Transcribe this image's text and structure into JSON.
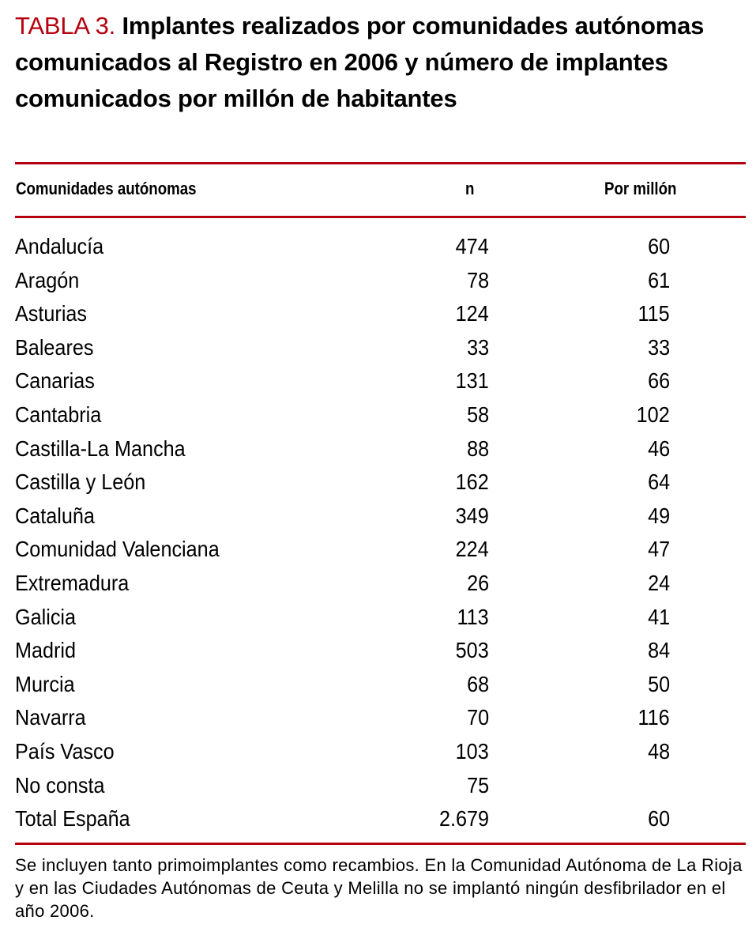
{
  "title": {
    "label": "TABLA 3.",
    "text": "Implantes realizados por comunidades autónomas comunicados al Registro en 2006 y número de implantes comunicados por millón de habitantes"
  },
  "colors": {
    "accent": "#b5000f"
  },
  "headers": [
    "Comunidades autónomas",
    "n",
    "Por millón"
  ],
  "rows": [
    [
      "Andalucía",
      "474",
      "60"
    ],
    [
      "Aragón",
      "78",
      "61"
    ],
    [
      "Asturias",
      "124",
      "115"
    ],
    [
      "Baleares",
      "33",
      "33"
    ],
    [
      "Canarias",
      "131",
      "66"
    ],
    [
      "Cantabria",
      "58",
      "102"
    ],
    [
      "Castilla-La Mancha",
      "88",
      "46"
    ],
    [
      "Castilla y León",
      "162",
      "64"
    ],
    [
      "Cataluña",
      "349",
      "49"
    ],
    [
      "Comunidad Valenciana",
      "224",
      "47"
    ],
    [
      "Extremadura",
      "26",
      "24"
    ],
    [
      "Galicia",
      "113",
      "41"
    ],
    [
      "Madrid",
      "503",
      "84"
    ],
    [
      "Murcia",
      "68",
      "50"
    ],
    [
      "Navarra",
      "70",
      "116"
    ],
    [
      "País Vasco",
      "103",
      "48"
    ],
    [
      "No consta",
      "75",
      ""
    ],
    [
      "Total España",
      "2.679",
      "60"
    ]
  ],
  "footnote": "Se incluyen tanto primoimplantes como recambios. En la Comunidad Autónoma de La Rioja y en las Ciudades Autónomas de Ceuta y Melilla no se implantó ningún desfibrilador en el año 2006."
}
